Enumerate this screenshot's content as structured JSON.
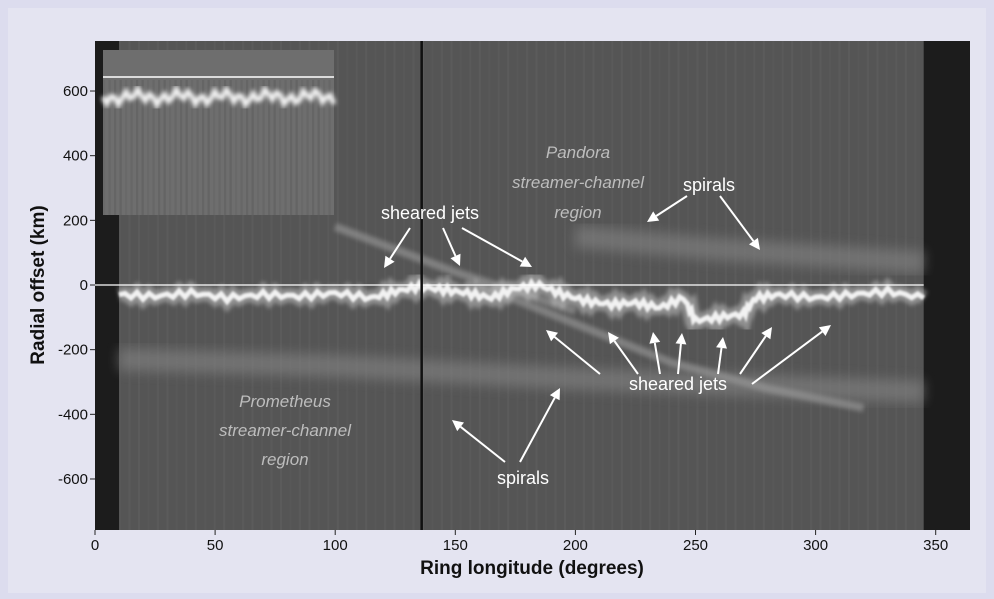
{
  "colors": {
    "background": "#dcdcee",
    "plot_bg": "#555555",
    "edge_band": "#1c1c1c",
    "ring_core": "#f2f2f2",
    "annotation": "#ffffff",
    "region_text": "#bdbdbd"
  },
  "chart_data": {
    "type": "heatmap",
    "title": "",
    "xlabel": "Ring longitude (degrees)",
    "ylabel": "Radial offset (km)",
    "xlim": [
      0,
      360
    ],
    "ylim": [
      -750,
      750
    ],
    "x_ticks": [
      0,
      50,
      100,
      150,
      200,
      250,
      300,
      350
    ],
    "y_ticks": [
      600,
      400,
      200,
      0,
      -200,
      -400,
      -600
    ],
    "grid": false,
    "data_coverage_x": [
      10,
      345
    ],
    "cursor_line_x": 136,
    "reference_line_y": 0,
    "ring_core_profile": {
      "x": [
        10,
        25,
        40,
        55,
        70,
        85,
        100,
        115,
        125,
        135,
        145,
        155,
        165,
        175,
        185,
        195,
        205,
        215,
        225,
        235,
        245,
        250,
        260,
        270,
        275,
        285,
        300,
        315,
        330,
        345
      ],
      "y": [
        -30,
        -35,
        -25,
        -40,
        -30,
        -35,
        -25,
        -40,
        -20,
        -5,
        -15,
        -25,
        -40,
        -10,
        0,
        -30,
        -50,
        -60,
        -55,
        -70,
        -40,
        -110,
        -100,
        -90,
        -40,
        -30,
        -40,
        -30,
        -20,
        -40
      ]
    },
    "sheared_jet_tracks": [
      {
        "x": [
          100,
          125,
          150,
          175,
          200
        ],
        "y": [
          180,
          110,
          40,
          -20,
          -80
        ]
      },
      {
        "x": [
          160,
          200,
          240,
          280,
          320
        ],
        "y": [
          0,
          -120,
          -240,
          -320,
          -380
        ]
      }
    ],
    "spiral_bands": [
      {
        "x": [
          10,
          100,
          200,
          345
        ],
        "y": [
          -230,
          -250,
          -290,
          -330
        ]
      },
      {
        "x": [
          200,
          260,
          345
        ],
        "y": [
          150,
          110,
          70
        ]
      }
    ],
    "inset": {
      "description_free": true,
      "core_level": 600,
      "line_level": 640
    },
    "annotations": {
      "top_sheared_jets": "sheared jets",
      "top_spirals": "spirals",
      "bottom_sheared_jets": "sheared jets",
      "bottom_spirals": "spirals",
      "pandora_region": [
        "Pandora",
        "streamer-channel",
        "region"
      ],
      "prometheus_region": [
        "Prometheus",
        "streamer-channel",
        "region"
      ]
    }
  }
}
